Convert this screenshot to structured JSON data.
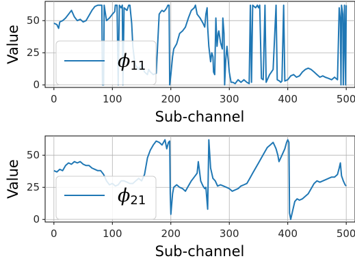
{
  "chart_data": [
    {
      "type": "line",
      "xlabel": "Sub-channel",
      "ylabel": "Value",
      "xlim": [
        -15,
        515
      ],
      "ylim": [
        -2,
        65
      ],
      "xticks": [
        0,
        100,
        200,
        300,
        400,
        500
      ],
      "yticks": [
        0,
        25,
        50
      ],
      "grid": true,
      "legend_position": "center-left",
      "line_color": "#1f77b4",
      "series": [
        {
          "name": "ϕ11",
          "name_symbol": "ϕ",
          "name_subscript": "11",
          "points": [
            [
              0,
              48
            ],
            [
              5,
              47
            ],
            [
              8,
              44
            ],
            [
              10,
              49
            ],
            [
              15,
              50
            ],
            [
              20,
              52
            ],
            [
              25,
              55
            ],
            [
              30,
              58
            ],
            [
              35,
              53
            ],
            [
              40,
              50
            ],
            [
              45,
              51
            ],
            [
              50,
              49
            ],
            [
              55,
              50
            ],
            [
              60,
              54
            ],
            [
              65,
              58
            ],
            [
              70,
              61
            ],
            [
              75,
              62
            ],
            [
              80,
              62
            ],
            [
              82,
              62
            ],
            [
              83,
              0
            ],
            [
              85,
              0
            ],
            [
              86,
              62
            ],
            [
              90,
              50
            ],
            [
              95,
              52
            ],
            [
              100,
              55
            ],
            [
              104,
              57
            ],
            [
              105,
              62
            ],
            [
              108,
              62
            ],
            [
              110,
              0
            ],
            [
              112,
              62
            ],
            [
              115,
              60
            ],
            [
              117,
              62
            ],
            [
              118,
              0
            ],
            [
              120,
              60
            ],
            [
              125,
              58
            ],
            [
              128,
              62
            ],
            [
              130,
              62
            ],
            [
              133,
              48
            ],
            [
              135,
              30
            ],
            [
              138,
              18
            ],
            [
              140,
              15
            ],
            [
              145,
              12
            ],
            [
              150,
              16
            ],
            [
              155,
              10
            ],
            [
              160,
              8
            ],
            [
              162,
              12
            ],
            [
              165,
              10
            ],
            [
              170,
              8
            ],
            [
              175,
              9
            ],
            [
              180,
              55
            ],
            [
              183,
              57
            ],
            [
              185,
              58
            ],
            [
              188,
              57
            ],
            [
              190,
              58
            ],
            [
              193,
              60
            ],
            [
              195,
              62
            ],
            [
              197,
              62
            ],
            [
              198,
              0
            ],
            [
              200,
              8
            ],
            [
              203,
              22
            ],
            [
              205,
              28
            ],
            [
              210,
              32
            ],
            [
              215,
              40
            ],
            [
              220,
              42
            ],
            [
              225,
              45
            ],
            [
              230,
              52
            ],
            [
              235,
              58
            ],
            [
              240,
              60
            ],
            [
              242,
              62
            ],
            [
              245,
              55
            ],
            [
              250,
              52
            ],
            [
              255,
              48
            ],
            [
              258,
              45
            ],
            [
              260,
              55
            ],
            [
              262,
              60
            ],
            [
              263,
              45
            ],
            [
              265,
              30
            ],
            [
              268,
              18
            ],
            [
              270,
              25
            ],
            [
              272,
              22
            ],
            [
              273,
              10
            ],
            [
              275,
              8
            ],
            [
              277,
              52
            ],
            [
              279,
              30
            ],
            [
              281,
              40
            ],
            [
              282,
              42
            ],
            [
              285,
              33
            ],
            [
              288,
              28
            ],
            [
              289,
              52
            ],
            [
              291,
              40
            ],
            [
              292,
              0
            ],
            [
              294,
              20
            ],
            [
              296,
              30
            ],
            [
              300,
              10
            ],
            [
              303,
              2
            ],
            [
              306,
              2
            ],
            [
              310,
              1
            ],
            [
              315,
              4
            ],
            [
              320,
              2
            ],
            [
              325,
              4
            ],
            [
              330,
              2
            ],
            [
              334,
              1
            ],
            [
              336,
              62
            ],
            [
              338,
              2
            ],
            [
              340,
              62
            ],
            [
              345,
              60
            ],
            [
              348,
              62
            ],
            [
              350,
              60
            ],
            [
              352,
              62
            ],
            [
              355,
              5
            ],
            [
              358,
              4
            ],
            [
              361,
              62
            ],
            [
              363,
              2
            ],
            [
              366,
              5
            ],
            [
              369,
              8
            ],
            [
              372,
              10
            ],
            [
              375,
              12
            ],
            [
              380,
              62
            ],
            [
              382,
              4
            ],
            [
              386,
              3
            ],
            [
              388,
              2
            ],
            [
              390,
              3
            ],
            [
              393,
              62
            ],
            [
              395,
              3
            ],
            [
              400,
              4
            ],
            [
              405,
              7
            ],
            [
              410,
              8
            ],
            [
              415,
              6
            ],
            [
              420,
              7
            ],
            [
              425,
              10
            ],
            [
              430,
              12
            ],
            [
              435,
              13
            ],
            [
              440,
              12
            ],
            [
              445,
              10
            ],
            [
              450,
              8
            ],
            [
              455,
              6
            ],
            [
              460,
              7
            ],
            [
              464,
              6
            ],
            [
              470,
              5
            ],
            [
              475,
              4
            ],
            [
              480,
              6
            ],
            [
              485,
              4
            ],
            [
              488,
              60
            ],
            [
              490,
              50
            ],
            [
              491,
              0
            ],
            [
              492,
              62
            ],
            [
              494,
              55
            ],
            [
              495,
              0
            ],
            [
              497,
              62
            ],
            [
              499,
              0
            ],
            [
              500,
              62
            ]
          ]
        }
      ]
    },
    {
      "type": "line",
      "xlabel": "Sub-channel",
      "ylabel": "Value",
      "xlim": [
        -15,
        515
      ],
      "ylim": [
        -2,
        65
      ],
      "xticks": [
        0,
        100,
        200,
        300,
        400,
        500
      ],
      "yticks": [
        0,
        25,
        50
      ],
      "grid": true,
      "legend_position": "center-left",
      "line_color": "#1f77b4",
      "series": [
        {
          "name": "ϕ21",
          "name_symbol": "ϕ",
          "name_subscript": "21",
          "points": [
            [
              0,
              38
            ],
            [
              5,
              37
            ],
            [
              10,
              39
            ],
            [
              15,
              38
            ],
            [
              20,
              42
            ],
            [
              25,
              44
            ],
            [
              30,
              43
            ],
            [
              35,
              45
            ],
            [
              40,
              44
            ],
            [
              45,
              45
            ],
            [
              50,
              43
            ],
            [
              55,
              42
            ],
            [
              60,
              42
            ],
            [
              65,
              40
            ],
            [
              70,
              39
            ],
            [
              75,
              38
            ],
            [
              80,
              38
            ],
            [
              85,
              35
            ],
            [
              90,
              30
            ],
            [
              95,
              27
            ],
            [
              100,
              28
            ],
            [
              105,
              26
            ],
            [
              110,
              27
            ],
            [
              115,
              30
            ],
            [
              120,
              30
            ],
            [
              125,
              29
            ],
            [
              130,
              28
            ],
            [
              135,
              28
            ],
            [
              140,
              30
            ],
            [
              145,
              32
            ],
            [
              150,
              30
            ],
            [
              155,
              35
            ],
            [
              160,
              48
            ],
            [
              165,
              54
            ],
            [
              170,
              58
            ],
            [
              175,
              61
            ],
            [
              180,
              60
            ],
            [
              185,
              58
            ],
            [
              190,
              62
            ],
            [
              193,
              55
            ],
            [
              196,
              60
            ],
            [
              198,
              61
            ],
            [
              199,
              20
            ],
            [
              200,
              4
            ],
            [
              203,
              20
            ],
            [
              205,
              25
            ],
            [
              210,
              27
            ],
            [
              215,
              25
            ],
            [
              220,
              24
            ],
            [
              225,
              22
            ],
            [
              230,
              26
            ],
            [
              235,
              30
            ],
            [
              240,
              33
            ],
            [
              245,
              36
            ],
            [
              247,
              45
            ],
            [
              249,
              38
            ],
            [
              251,
              30
            ],
            [
              253,
              28
            ],
            [
              255,
              26
            ],
            [
              258,
              24
            ],
            [
              260,
              25
            ],
            [
              263,
              8
            ],
            [
              265,
              62
            ],
            [
              268,
              40
            ],
            [
              272,
              32
            ],
            [
              276,
              30
            ],
            [
              280,
              26
            ],
            [
              285,
              27
            ],
            [
              290,
              26
            ],
            [
              295,
              25
            ],
            [
              300,
              24
            ],
            [
              305,
              22
            ],
            [
              310,
              23
            ],
            [
              315,
              24
            ],
            [
              320,
              26
            ],
            [
              325,
              27
            ],
            [
              330,
              28
            ],
            [
              335,
              32
            ],
            [
              340,
              36
            ],
            [
              345,
              40
            ],
            [
              350,
              44
            ],
            [
              355,
              48
            ],
            [
              360,
              52
            ],
            [
              365,
              56
            ],
            [
              370,
              58
            ],
            [
              375,
              60
            ],
            [
              378,
              57
            ],
            [
              380,
              55
            ],
            [
              383,
              50
            ],
            [
              385,
              45
            ],
            [
              390,
              50
            ],
            [
              395,
              55
            ],
            [
              398,
              60
            ],
            [
              400,
              62
            ],
            [
              402,
              60
            ],
            [
              403,
              5
            ],
            [
              405,
              0
            ],
            [
              408,
              6
            ],
            [
              412,
              14
            ],
            [
              416,
              16
            ],
            [
              420,
              15
            ],
            [
              425,
              16
            ],
            [
              430,
              18
            ],
            [
              435,
              20
            ],
            [
              440,
              24
            ],
            [
              445,
              28
            ],
            [
              450,
              30
            ],
            [
              455,
              29
            ],
            [
              460,
              30
            ],
            [
              465,
              31
            ],
            [
              470,
              32
            ],
            [
              475,
              33
            ],
            [
              480,
              33
            ],
            [
              485,
              35
            ],
            [
              488,
              40
            ],
            [
              490,
              44
            ],
            [
              492,
              34
            ],
            [
              495,
              30
            ],
            [
              498,
              27
            ],
            [
              500,
              26
            ]
          ]
        }
      ]
    }
  ]
}
